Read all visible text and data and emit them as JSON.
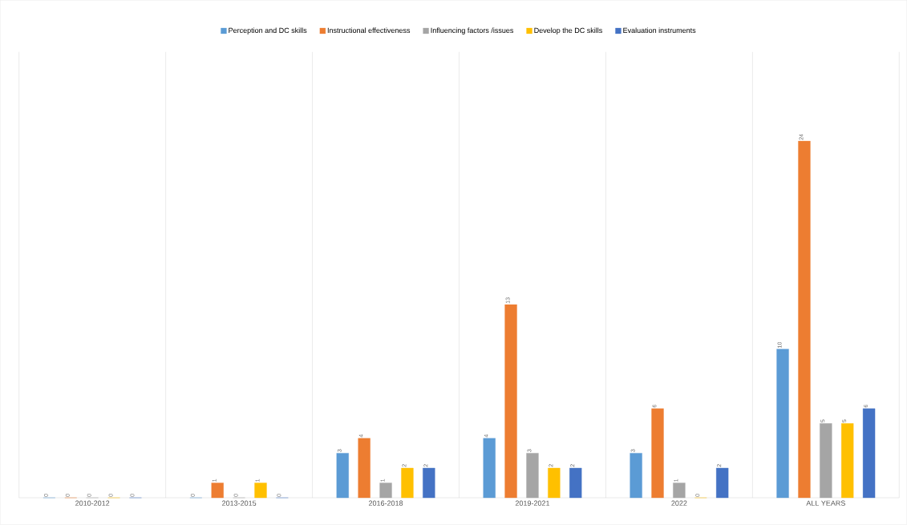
{
  "chart_data": {
    "type": "bar",
    "categories": [
      "2010-2012",
      "2013-2015",
      "2016-2018",
      "2019-2021",
      "2022",
      "ALL YEARS"
    ],
    "series": [
      {
        "name": "Perception and DC skills",
        "color": "#5b9bd5",
        "values": [
          0,
          0,
          3,
          4,
          3,
          10
        ]
      },
      {
        "name": "Instructional effectiveness",
        "color": "#ed7d31",
        "values": [
          0,
          1,
          4,
          13,
          6,
          24
        ]
      },
      {
        "name": "Influencing factors /issues",
        "color": "#a5a5a5",
        "values": [
          0,
          0,
          1,
          3,
          1,
          5
        ]
      },
      {
        "name": "Develop the DC skills",
        "color": "#ffc000",
        "values": [
          0,
          1,
          2,
          2,
          0,
          5
        ]
      },
      {
        "name": "Evaluation instruments",
        "color": "#4472c4",
        "values": [
          0,
          0,
          2,
          2,
          2,
          6
        ]
      }
    ],
    "data_labels": true,
    "grid": "x",
    "legend": "top"
  }
}
